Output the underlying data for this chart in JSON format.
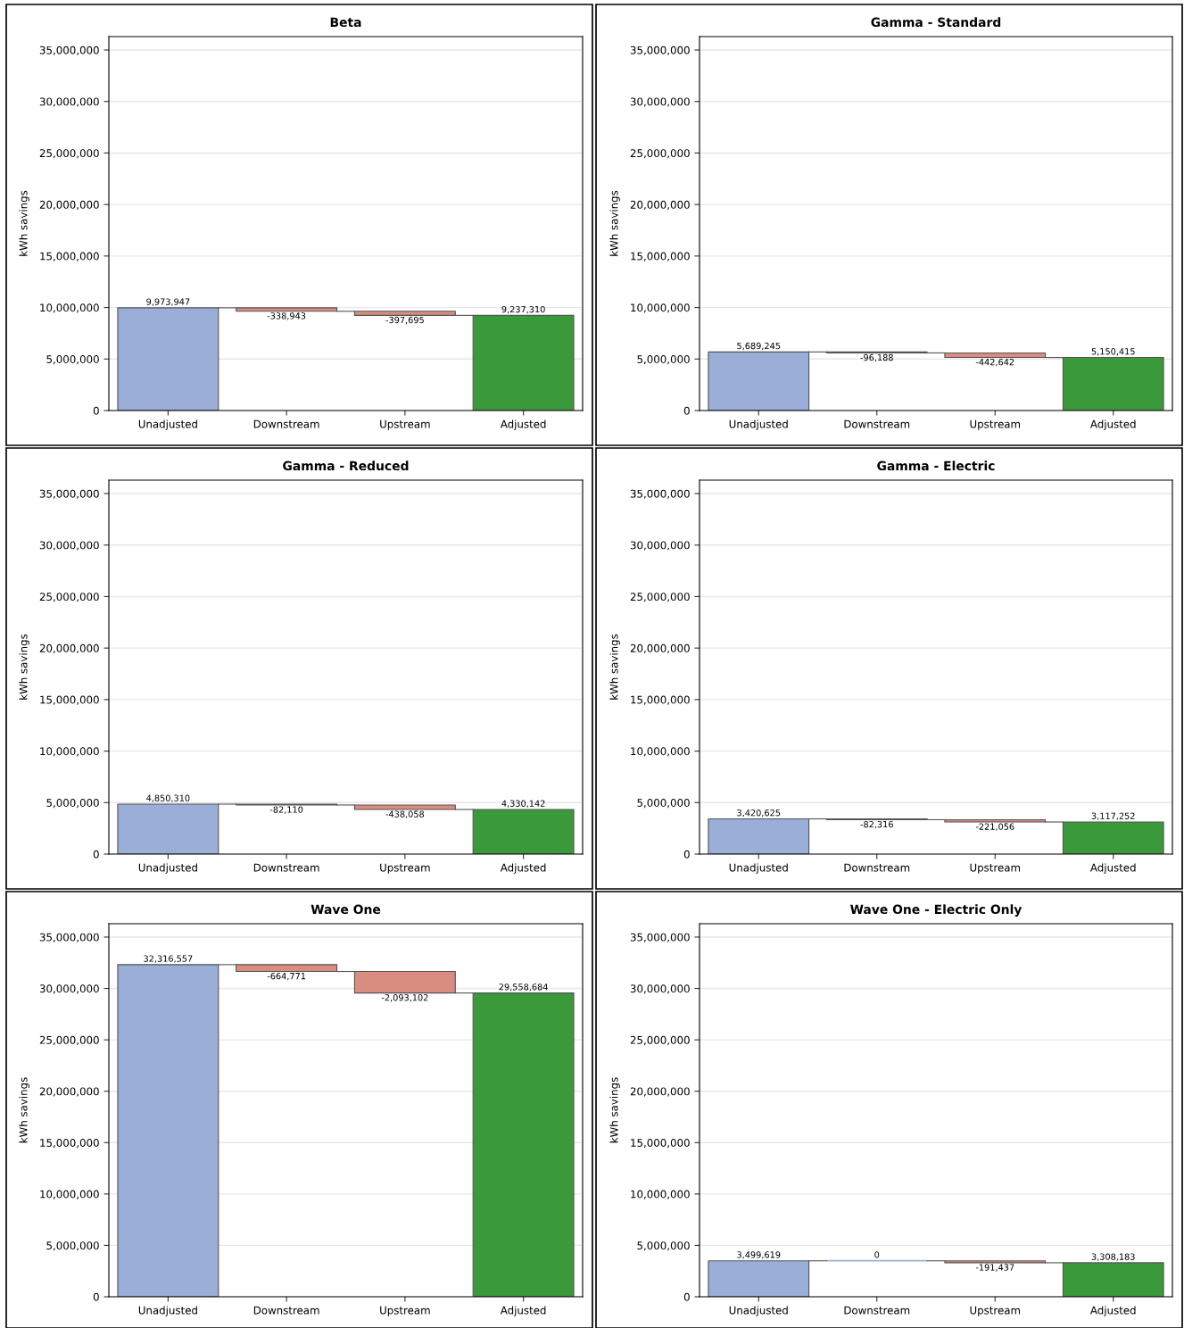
{
  "chart_data": [
    {
      "type": "bar",
      "title": "Beta",
      "ylabel": "kWh savings",
      "categories": [
        "Unadjusted",
        "Downstream",
        "Upstream",
        "Adjusted"
      ],
      "values": [
        9973947,
        -338943,
        -397695,
        9237310
      ],
      "base": [
        0,
        9973947,
        9635004,
        0
      ],
      "value_labels": [
        "9,973,947",
        "-338,943",
        "-397,695",
        "9,237,310"
      ],
      "colors": [
        "#9aaed8",
        "#d98c80",
        "#d98c80",
        "#3a9a3a"
      ],
      "ylim": [
        0,
        36300000
      ],
      "yticks": [
        0,
        {
          "value": 5000000,
          "label": "5,000,000"
        },
        {
          "value": 10000000,
          "label": "10,000,000"
        },
        {
          "value": 15000000,
          "label": "15,000,000"
        },
        {
          "value": 20000000,
          "label": "20,000,000"
        },
        {
          "value": 25000000,
          "label": "25,000,000"
        },
        {
          "value": 30000000,
          "label": "30,000,000"
        },
        {
          "value": 35000000,
          "label": "35,000,000"
        }
      ],
      "grid": "y",
      "legend": false
    },
    {
      "type": "bar",
      "title": "Gamma - Standard",
      "ylabel": "kWh savings",
      "categories": [
        "Unadjusted",
        "Downstream",
        "Upstream",
        "Adjusted"
      ],
      "values": [
        5689245,
        -96188,
        -442642,
        5150415
      ],
      "base": [
        0,
        5689245,
        5593057,
        0
      ],
      "value_labels": [
        "5,689,245",
        "-96,188",
        "-442,642",
        "5,150,415"
      ],
      "colors": [
        "#9aaed8",
        "#d98c80",
        "#d98c80",
        "#3a9a3a"
      ],
      "ylim": [
        0,
        36300000
      ],
      "yticks": [
        0,
        {
          "value": 5000000,
          "label": "5,000,000"
        },
        {
          "value": 10000000,
          "label": "10,000,000"
        },
        {
          "value": 15000000,
          "label": "15,000,000"
        },
        {
          "value": 20000000,
          "label": "20,000,000"
        },
        {
          "value": 25000000,
          "label": "25,000,000"
        },
        {
          "value": 30000000,
          "label": "30,000,000"
        },
        {
          "value": 35000000,
          "label": "35,000,000"
        }
      ],
      "grid": "y",
      "legend": false
    },
    {
      "type": "bar",
      "title": "Gamma - Reduced",
      "ylabel": "kWh savings",
      "categories": [
        "Unadjusted",
        "Downstream",
        "Upstream",
        "Adjusted"
      ],
      "values": [
        4850310,
        -82110,
        -438058,
        4330142
      ],
      "base": [
        0,
        4850310,
        4768200,
        0
      ],
      "value_labels": [
        "4,850,310",
        "-82,110",
        "-438,058",
        "4,330,142"
      ],
      "colors": [
        "#9aaed8",
        "#d98c80",
        "#d98c80",
        "#3a9a3a"
      ],
      "ylim": [
        0,
        36300000
      ],
      "yticks": [
        0,
        {
          "value": 5000000,
          "label": "5,000,000"
        },
        {
          "value": 10000000,
          "label": "10,000,000"
        },
        {
          "value": 15000000,
          "label": "15,000,000"
        },
        {
          "value": 20000000,
          "label": "20,000,000"
        },
        {
          "value": 25000000,
          "label": "25,000,000"
        },
        {
          "value": 30000000,
          "label": "30,000,000"
        },
        {
          "value": 35000000,
          "label": "35,000,000"
        }
      ],
      "grid": "y",
      "legend": false
    },
    {
      "type": "bar",
      "title": "Gamma - Electric",
      "ylabel": "kWh savings",
      "categories": [
        "Unadjusted",
        "Downstream",
        "Upstream",
        "Adjusted"
      ],
      "values": [
        3420625,
        -82316,
        -221056,
        3117252
      ],
      "base": [
        0,
        3420625,
        3338309,
        0
      ],
      "value_labels": [
        "3,420,625",
        "-82,316",
        "-221,056",
        "3,117,252"
      ],
      "colors": [
        "#9aaed8",
        "#d98c80",
        "#d98c80",
        "#3a9a3a"
      ],
      "ylim": [
        0,
        36300000
      ],
      "yticks": [
        0,
        {
          "value": 5000000,
          "label": "5,000,000"
        },
        {
          "value": 10000000,
          "label": "10,000,000"
        },
        {
          "value": 15000000,
          "label": "15,000,000"
        },
        {
          "value": 20000000,
          "label": "20,000,000"
        },
        {
          "value": 25000000,
          "label": "25,000,000"
        },
        {
          "value": 30000000,
          "label": "30,000,000"
        },
        {
          "value": 35000000,
          "label": "35,000,000"
        }
      ],
      "grid": "y",
      "legend": false
    },
    {
      "type": "bar",
      "title": "Wave One",
      "ylabel": "kWh savings",
      "categories": [
        "Unadjusted",
        "Downstream",
        "Upstream",
        "Adjusted"
      ],
      "values": [
        32316557,
        -664771,
        -2093102,
        29558684
      ],
      "base": [
        0,
        32316557,
        31651786,
        0
      ],
      "value_labels": [
        "32,316,557",
        "-664,771",
        "-2,093,102",
        "29,558,684"
      ],
      "colors": [
        "#9aaed8",
        "#d98c80",
        "#d98c80",
        "#3a9a3a"
      ],
      "ylim": [
        0,
        36300000
      ],
      "yticks": [
        0,
        {
          "value": 5000000,
          "label": "5,000,000"
        },
        {
          "value": 10000000,
          "label": "10,000,000"
        },
        {
          "value": 15000000,
          "label": "15,000,000"
        },
        {
          "value": 20000000,
          "label": "20,000,000"
        },
        {
          "value": 25000000,
          "label": "25,000,000"
        },
        {
          "value": 30000000,
          "label": "30,000,000"
        },
        {
          "value": 35000000,
          "label": "35,000,000"
        }
      ],
      "grid": "y",
      "legend": false
    },
    {
      "type": "bar",
      "title": "Wave One - Electric Only",
      "ylabel": "kWh savings",
      "categories": [
        "Unadjusted",
        "Downstream",
        "Upstream",
        "Adjusted"
      ],
      "values": [
        3499619,
        0,
        -191437,
        3308183
      ],
      "base": [
        0,
        3499619,
        3499619,
        0
      ],
      "value_labels": [
        "3,499,619",
        "0",
        "-191,437",
        "3,308,183"
      ],
      "colors": [
        "#9aaed8",
        "#9aaed8",
        "#d98c80",
        "#3a9a3a"
      ],
      "ylim": [
        0,
        36300000
      ],
      "yticks": [
        0,
        {
          "value": 5000000,
          "label": "5,000,000"
        },
        {
          "value": 10000000,
          "label": "10,000,000"
        },
        {
          "value": 15000000,
          "label": "15,000,000"
        },
        {
          "value": 20000000,
          "label": "20,000,000"
        },
        {
          "value": 25000000,
          "label": "25,000,000"
        },
        {
          "value": 30000000,
          "label": "30,000,000"
        },
        {
          "value": 35000000,
          "label": "35,000,000"
        }
      ],
      "grid": "y",
      "legend": false
    }
  ]
}
